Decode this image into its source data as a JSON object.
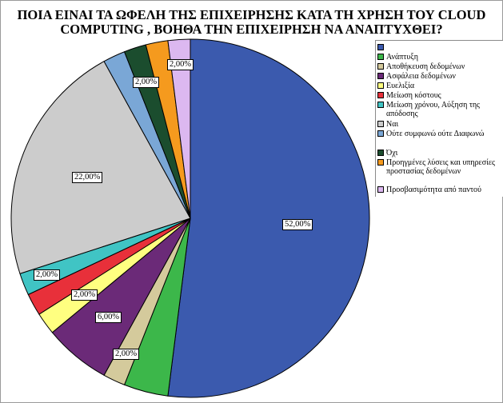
{
  "chart_data": {
    "type": "pie",
    "title_lines": [
      "ΠΟΙΑ ΕΙΝΑΙ ΤΑ ΩΦΕΛΗ ΤΗΣ ΕΠΙΧΕΙΡΗΣΗΣ ΚΑΤΑ ΤΗ ΧΡΗΣΗ ΤΟΥ CLOUD",
      "COMPUTING , ΒΟΗΘΑ ΤΗΝ ΕΠΙΧΕΙΡΗΣΗ ΝΑ ΑΝΑΠΤΥΧΘΕΙ?"
    ],
    "legend_position": "right",
    "slices": [
      {
        "legend": "",
        "value": 52,
        "color": "#3b5aae",
        "data_label": "52,00%"
      },
      {
        "legend": "Ανάπτυξη",
        "value": 4,
        "color": "#3cb74a",
        "data_label": ""
      },
      {
        "legend": "Αποθήκευση δεδομένων",
        "value": 2,
        "color": "#d4ca9c",
        "data_label": "2,00%"
      },
      {
        "legend": "Ασφάλεια δεδομένων",
        "value": 6,
        "color": "#6b2a78",
        "data_label": "6,00%"
      },
      {
        "legend": "Ευελιξία",
        "value": 2,
        "color": "#ffff80",
        "data_label": "2,00%"
      },
      {
        "legend": "Μείωση κόστους",
        "value": 2,
        "color": "#e8303a",
        "data_label": ""
      },
      {
        "legend": "Μείωση χρόνου, Αύξηση της απόδοσης",
        "value": 2,
        "color": "#40c4c4",
        "data_label": "2,00%"
      },
      {
        "legend": "Ναι",
        "value": 22,
        "color": "#cccccc",
        "data_label": "22,00%"
      },
      {
        "legend": "Ούτε συμφωνώ ούτε Διαφωνώ",
        "value": 2,
        "color": "#7aa7d6",
        "data_label": ""
      },
      {
        "legend": "Όχι",
        "value": 2,
        "color": "#1b4d2e",
        "data_label": "2,00%"
      },
      {
        "legend": "Προηγμένες λύσεις και υπηρεσίες προστασίας δεδομένων",
        "value": 2,
        "color": "#f59a1e",
        "data_label": ""
      },
      {
        "legend": "Προσβασιμότητα από παντού",
        "value": 2,
        "color": "#dcb8f0",
        "data_label": "2,00%"
      }
    ]
  }
}
